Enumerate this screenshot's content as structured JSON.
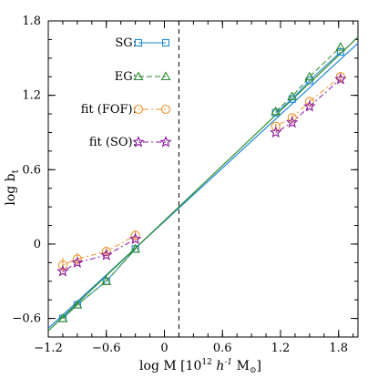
{
  "chart_data": {
    "type": "line",
    "xlabel": "log M [10",
    "xlabel_sup": "12",
    "xlabel_unit": "h",
    "xlabel_unit_sup": "-1",
    "xlabel_msun": "M",
    "xlabel_close": "]",
    "ylabel": "log b",
    "ylabel_sub": "t",
    "xlim": [
      -1.2,
      2.0
    ],
    "ylim": [
      -0.75,
      1.8
    ],
    "xticks": [
      -1.2,
      -0.6,
      0,
      0.6,
      1.2,
      1.8
    ],
    "xtick_labels": [
      "−1.2",
      "−0.6",
      "0",
      "0.6",
      "1.2",
      "1.8"
    ],
    "yticks": [
      -0.6,
      0,
      0.6,
      1.2,
      1.8
    ],
    "ytick_labels": [
      "−0.6",
      "0",
      "0.6",
      "1.2",
      "1.8"
    ],
    "vline_x": 0.15,
    "fit_lines": [
      {
        "color": "#1e88d8",
        "x": [
          -1.2,
          2.0
        ],
        "y": [
          -0.68,
          1.62
        ]
      },
      {
        "color": "#2e8b2e",
        "x": [
          -1.2,
          2.0
        ],
        "y": [
          -0.7,
          1.67
        ]
      }
    ],
    "series": [
      {
        "name": "SG:",
        "marker": "square",
        "color": "#1e88d8",
        "dash": "",
        "x": [
          -1.05,
          -0.9,
          -0.6,
          -0.3,
          1.15,
          1.32,
          1.5,
          1.82
        ],
        "y": [
          -0.6,
          -0.49,
          -0.3,
          -0.04,
          1.06,
          1.17,
          1.32,
          1.55
        ]
      },
      {
        "name": "EG:",
        "marker": "triangle",
        "color": "#2e8b2e",
        "dash": "6,3",
        "x": [
          -1.05,
          -0.9,
          -0.6,
          -0.3,
          1.15,
          1.32,
          1.5,
          1.82
        ],
        "y": [
          -0.6,
          -0.49,
          -0.3,
          -0.04,
          1.07,
          1.19,
          1.35,
          1.59
        ]
      },
      {
        "name": "fit (FOF):",
        "marker": "circle",
        "color": "#f0922a",
        "dash": "2,3,6,3",
        "x": [
          -1.05,
          -0.9,
          -0.6,
          -0.3,
          1.15,
          1.32,
          1.5,
          1.82
        ],
        "y": [
          -0.17,
          -0.12,
          -0.06,
          0.07,
          0.95,
          1.02,
          1.15,
          1.35
        ],
        "yerr": [
          0.06,
          0.05,
          0.04,
          0.04,
          0.02,
          0.02,
          0.02,
          0.02
        ]
      },
      {
        "name": "fit (SO):",
        "marker": "star",
        "color": "#8b1a9b",
        "dash": "2,3,6,3",
        "x": [
          -1.05,
          -0.9,
          -0.6,
          -0.3,
          1.15,
          1.32,
          1.5,
          1.82
        ],
        "y": [
          -0.22,
          -0.15,
          -0.09,
          0.04,
          0.9,
          0.98,
          1.11,
          1.33
        ]
      }
    ]
  }
}
